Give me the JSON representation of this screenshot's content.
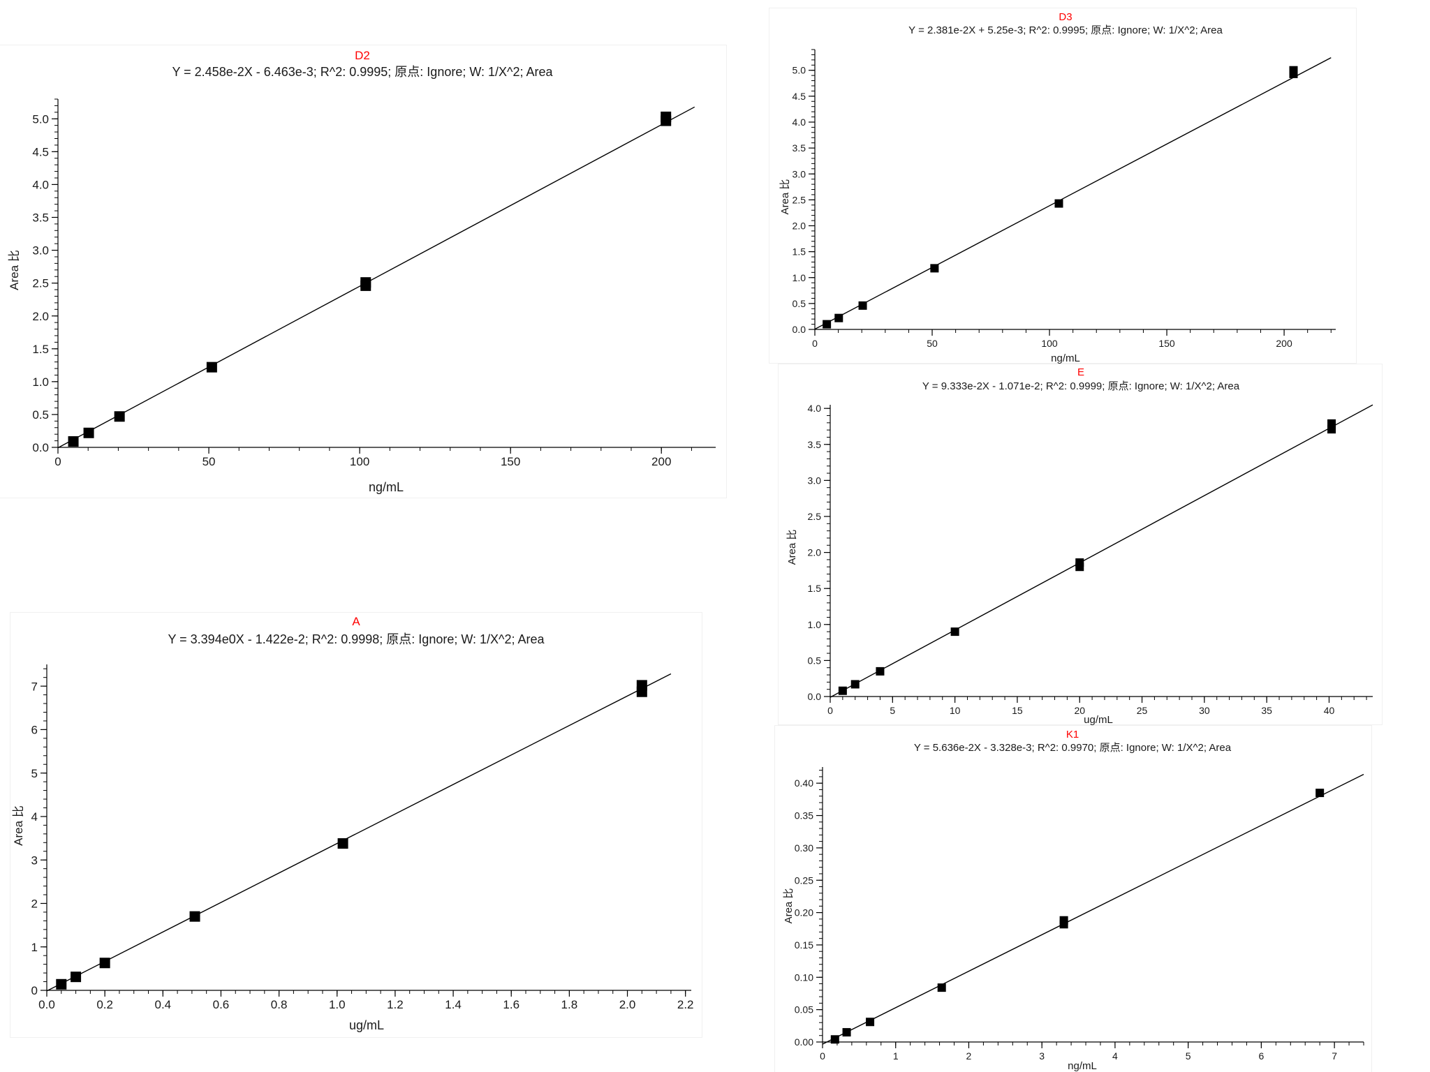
{
  "style": {
    "title_color": "#ff0000",
    "mark_color": "#000000",
    "text_color": "#1a1a1a"
  },
  "chart_data": [
    {
      "id": "D2",
      "type": "scatter",
      "title": "D2",
      "subtitle": "Y = 2.458e-2X - 6.463e-3; R^2: 0.9995; 原点: Ignore; W: 1/X^2; Area",
      "xlabel": "ng/mL",
      "ylabel": "Area 比",
      "xlim": [
        0,
        218
      ],
      "ylim": [
        0,
        5.3
      ],
      "xticks": [
        0,
        50,
        100,
        150,
        200
      ],
      "xticklabels": [
        "0",
        "50",
        "100",
        "150",
        "200"
      ],
      "xminor": 10,
      "yticks": [
        0,
        0.5,
        1,
        1.5,
        2,
        2.5,
        3,
        3.5,
        4,
        4.5,
        5
      ],
      "yticklabels": [
        "0.0",
        "0.5",
        "1.0",
        "1.5",
        "2.0",
        "2.5",
        "3.0",
        "3.5",
        "4.0",
        "4.5",
        "5.0"
      ],
      "yminor": 0.1,
      "fit": {
        "slope": 0.02458,
        "intercept": -0.006463,
        "x_range": [
          0,
          211
        ]
      },
      "series": [
        {
          "x": [
            5.1,
            10.2,
            20.4,
            51,
            102,
            102,
            201.5,
            201.5
          ],
          "y": [
            0.09,
            0.22,
            0.47,
            1.22,
            2.46,
            2.51,
            4.97,
            5.03
          ]
        }
      ]
    },
    {
      "id": "D3",
      "type": "scatter",
      "title": "D3",
      "subtitle": "Y = 2.381e-2X + 5.25e-3; R^2: 0.9995; 原点: Ignore; W: 1/X^2; Area",
      "xlabel": "ng/mL",
      "ylabel": "Area 比",
      "xlim": [
        0,
        222
      ],
      "ylim": [
        0,
        5.4
      ],
      "xticks": [
        0,
        50,
        100,
        150,
        200
      ],
      "xticklabels": [
        "0",
        "50",
        "100",
        "150",
        "200"
      ],
      "xminor": 10,
      "yticks": [
        0,
        0.5,
        1,
        1.5,
        2,
        2.5,
        3,
        3.5,
        4,
        4.5,
        5
      ],
      "yticklabels": [
        "0.0",
        "0.5",
        "1.0",
        "1.5",
        "2.0",
        "2.5",
        "3.0",
        "3.5",
        "4.0",
        "4.5",
        "5.0"
      ],
      "yminor": 0.1,
      "fit": {
        "slope": 0.02381,
        "intercept": 0.00525,
        "x_range": [
          0,
          220
        ]
      },
      "series": [
        {
          "x": [
            5.1,
            10.2,
            20.4,
            51,
            104,
            204,
            204
          ],
          "y": [
            0.1,
            0.22,
            0.46,
            1.18,
            2.43,
            4.93,
            5.0
          ]
        }
      ]
    },
    {
      "id": "E",
      "type": "scatter",
      "title": "E",
      "subtitle": "Y = 9.333e-2X - 1.071e-2; R^2: 0.9999; 原点: Ignore; W: 1/X^2; Area",
      "xlabel": "ug/mL",
      "ylabel": "Area 比",
      "xlim": [
        0,
        43.5
      ],
      "ylim": [
        0,
        4.05
      ],
      "xticks": [
        0,
        5,
        10,
        15,
        20,
        25,
        30,
        35,
        40
      ],
      "xticklabels": [
        "0",
        "5",
        "10",
        "15",
        "20",
        "25",
        "30",
        "35",
        "40"
      ],
      "xminor": 1,
      "yticks": [
        0,
        0.5,
        1,
        1.5,
        2,
        2.5,
        3,
        3.5,
        4
      ],
      "yticklabels": [
        "0.0",
        "0.5",
        "1.0",
        "1.5",
        "2.0",
        "2.5",
        "3.0",
        "3.5",
        "4.0"
      ],
      "yminor": 0.1,
      "fit": {
        "slope": 0.09333,
        "intercept": -0.01071,
        "x_range": [
          0,
          43.5
        ]
      },
      "series": [
        {
          "x": [
            1,
            2,
            4,
            10,
            20,
            20,
            40.2,
            40.2
          ],
          "y": [
            0.08,
            0.17,
            0.35,
            0.9,
            1.8,
            1.86,
            3.71,
            3.79
          ]
        }
      ]
    },
    {
      "id": "A",
      "type": "scatter",
      "title": "A",
      "subtitle": "Y = 3.394e0X - 1.422e-2; R^2: 0.9998; 原点: Ignore; W: 1/X^2; Area",
      "xlabel": "ug/mL",
      "ylabel": "Area 比",
      "xlim": [
        0,
        2.22
      ],
      "ylim": [
        0,
        7.5
      ],
      "xticks": [
        0,
        0.2,
        0.4,
        0.6,
        0.8,
        1.0,
        1.2,
        1.4,
        1.6,
        1.8,
        2.0,
        2.2
      ],
      "xticklabels": [
        "0.0",
        "0.2",
        "0.4",
        "0.6",
        "0.8",
        "1.0",
        "1.2",
        "1.4",
        "1.6",
        "1.8",
        "2.0",
        "2.2"
      ],
      "xminor": 0.05,
      "yticks": [
        0,
        1,
        2,
        3,
        4,
        5,
        6,
        7
      ],
      "yticklabels": [
        "0",
        "1",
        "2",
        "3",
        "4",
        "5",
        "6",
        "7"
      ],
      "yminor": 0.2,
      "fit": {
        "slope": 3.394,
        "intercept": -0.01422,
        "x_range": [
          0,
          2.15
        ]
      },
      "series": [
        {
          "x": [
            0.05,
            0.1,
            0.2,
            0.51,
            1.02,
            2.05,
            2.05
          ],
          "y": [
            0.14,
            0.31,
            0.63,
            1.7,
            3.38,
            6.87,
            7.02
          ]
        }
      ]
    },
    {
      "id": "K1",
      "type": "scatter",
      "title": "K1",
      "subtitle": "Y = 5.636e-2X - 3.328e-3; R^2: 0.9970; 原点: Ignore; W: 1/X^2; Area",
      "xlabel": "ng/mL",
      "ylabel": "Area 比",
      "xlim": [
        0,
        7.4
      ],
      "ylim": [
        0,
        0.425
      ],
      "xticks": [
        0,
        1,
        2,
        3,
        4,
        5,
        6,
        7
      ],
      "xticklabels": [
        "0",
        "1",
        "2",
        "3",
        "4",
        "5",
        "6",
        "7"
      ],
      "xminor": 0.2,
      "yticks": [
        0,
        0.05,
        0.1,
        0.15,
        0.2,
        0.25,
        0.3,
        0.35,
        0.4
      ],
      "yticklabels": [
        "0.00",
        "0.05",
        "0.10",
        "0.15",
        "0.20",
        "0.25",
        "0.30",
        "0.35",
        "0.40"
      ],
      "yminor": 0.01,
      "fit": {
        "slope": 0.05636,
        "intercept": -0.003328,
        "x_range": [
          0,
          7.4
        ]
      },
      "series": [
        {
          "x": [
            0.17,
            0.33,
            0.65,
            1.63,
            3.3,
            3.3,
            6.8
          ],
          "y": [
            0.004,
            0.015,
            0.031,
            0.084,
            0.182,
            0.188,
            0.385
          ]
        }
      ]
    }
  ]
}
